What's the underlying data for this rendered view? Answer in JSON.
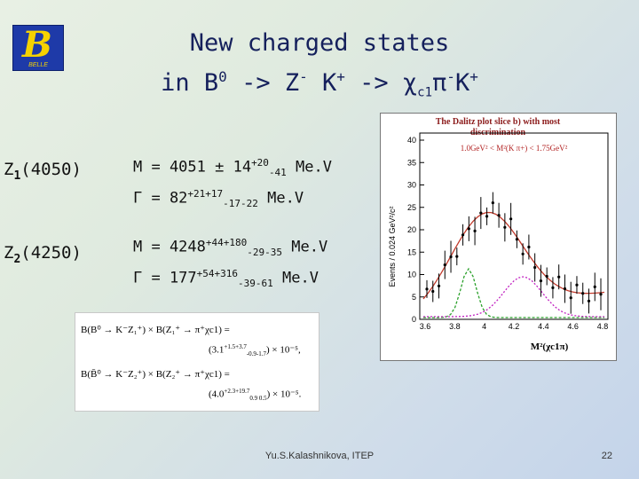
{
  "logo": {
    "letter": "B",
    "text": "BELLE"
  },
  "title": {
    "line1": "New charged states",
    "line2_a": "in B",
    "line2_b": "0",
    "line2_c": " -> Z",
    "line2_d": "-",
    "line2_e": " K",
    "line2_f": "+",
    "line2_g": " -> χ",
    "line2_h": "c1",
    "line2_i": "π",
    "line2_j": "-",
    "line2_k": "K",
    "line2_l": "+"
  },
  "z1": {
    "name": "Z",
    "sub": "1",
    "paren": "(4050)",
    "m_a": "M = 4051 ± 14",
    "m_sup": "+20",
    "m_sub": "-41",
    "m_unit": " Me.V",
    "g_a": "Γ = 82",
    "g_sup": "+21+17",
    "g_sub": "-17-22",
    "g_unit": " Me.V"
  },
  "z2": {
    "name": "Z",
    "sub": "2",
    "paren": "(4250)",
    "m_a": "M = 4248",
    "m_sup": "+44+180",
    "m_sub": "-29-35",
    "m_unit": " Me.V",
    "g_a": "Γ = 177",
    "g_sup": "+54+316",
    "g_sub": "-39-61",
    "g_unit": " Me.V"
  },
  "formula": {
    "l1": "B(B⁰ → K⁻Z₁⁺) × B(Z₁⁺ → π⁺χc1) =",
    "l2": "(3.1",
    "l3": "B(B̄⁰ → K⁻Z₂⁺) × B(Z₂⁺ → π⁺χc1) =",
    "l4": "(4.0",
    "e1sup": "+1.5+3.7",
    "e1sub": "-0.9-1.7",
    "e1tail": ") × 10⁻⁵,",
    "e2sup": "+2.3+19.7",
    "e2sub": "0.9 0.5",
    "e2tail": ") × 10⁻⁵."
  },
  "plot": {
    "title1": "The Dalitz plot slice b) with most",
    "title2": "discrimination",
    "cut": "1.0GeV² < M²(K π+) < 1.75GeV²",
    "ylabel": "Events / 0.024 GeV²/c²",
    "xlabel": "M²(χc1π)",
    "yticks": [
      "40",
      "35",
      "30",
      "25",
      "20",
      "15",
      "10",
      "5",
      "0"
    ],
    "xticks": [
      "3.6",
      "3.8",
      "4",
      "4.2",
      "4.4",
      "4.6",
      "4.8"
    ],
    "colors": {
      "data": "#000000",
      "fit": "#c0392b",
      "green": "#2aa02a",
      "magenta": "#c020c0",
      "title": "#8b1a1a"
    }
  },
  "footer": "Yu.S.Kalashnikova, ITEP",
  "page_number": "22"
}
